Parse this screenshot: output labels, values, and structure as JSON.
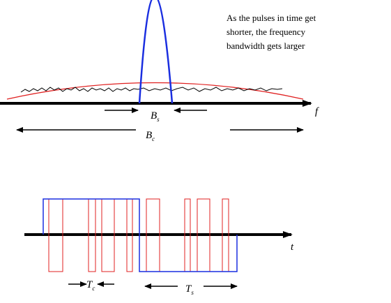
{
  "caption": {
    "lines": [
      "As the pulses in time get",
      "shorter, the frequency",
      "bandwidth gets larger"
    ]
  },
  "frequency_plot": {
    "axis_label": "f",
    "narrow_band": {
      "main": "B",
      "sub": "s"
    },
    "wide_band": {
      "main": "B",
      "sub": "c"
    }
  },
  "time_plot": {
    "axis_label": "t",
    "chip_period": {
      "main": "T",
      "sub": "c"
    },
    "symbol_period": {
      "main": "T",
      "sub": "s"
    }
  }
}
